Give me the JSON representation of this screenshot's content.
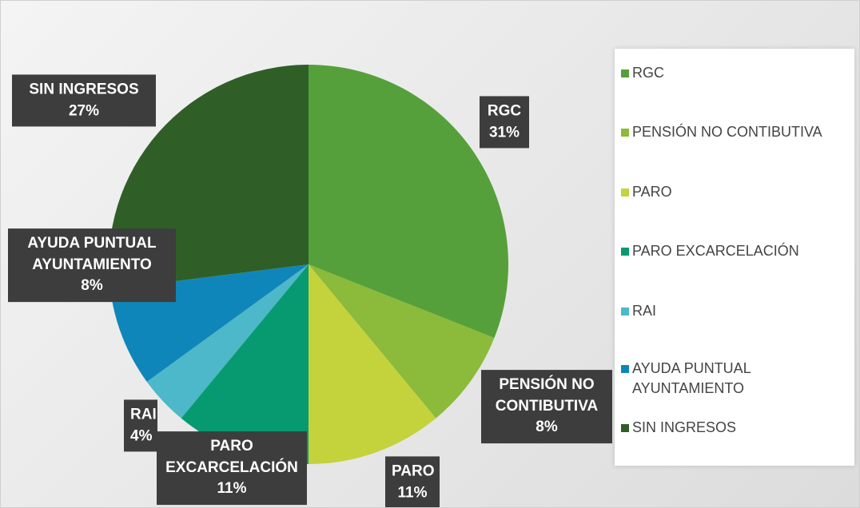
{
  "chart_data": {
    "type": "pie",
    "categories": [
      "RGC",
      "PENSIÓN NO CONTIBUTIVA",
      "PARO",
      "PARO EXCARCELACIÓN",
      "RAI",
      "AYUDA PUNTUAL AYUNTAMIENTO",
      "SIN INGRESOS"
    ],
    "values": [
      31,
      8,
      11,
      11,
      4,
      8,
      27
    ],
    "value_labels": [
      "31%",
      "8%",
      "11%",
      "11%",
      "4%",
      "8%",
      "27%"
    ],
    "colors": [
      "#55a03a",
      "#8cba3a",
      "#c4d23c",
      "#079a70",
      "#4cb8c9",
      "#0f86b9",
      "#2f5f27"
    ],
    "legend": "right"
  }
}
